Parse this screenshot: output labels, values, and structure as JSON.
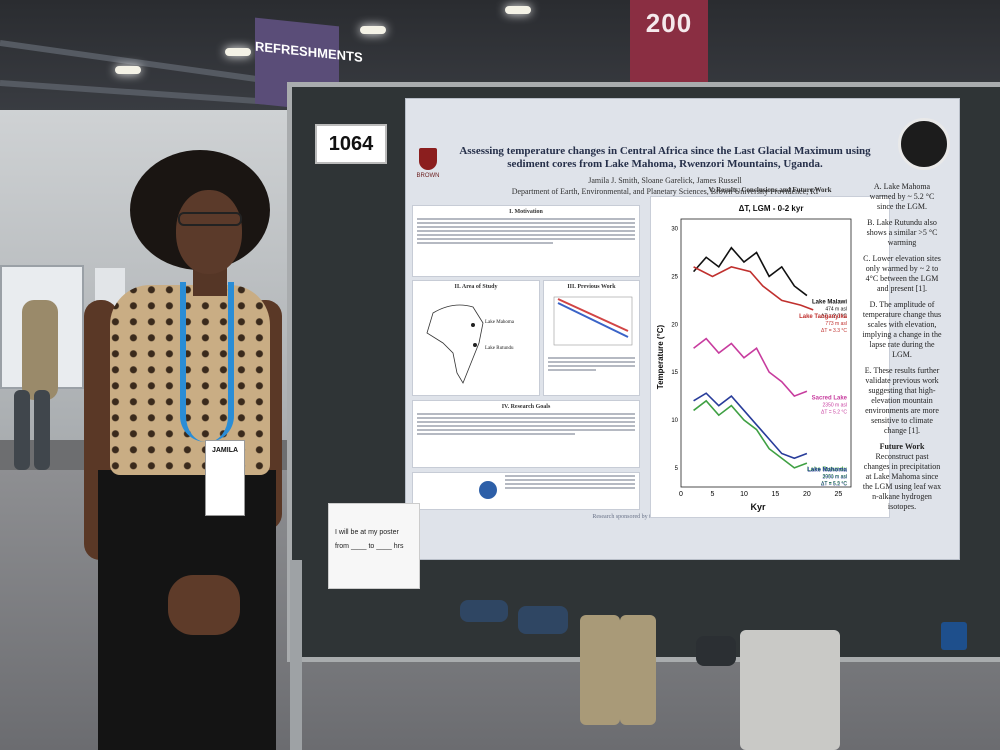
{
  "signs": {
    "refreshments": "REFRESHMENTS",
    "year_banner": "200"
  },
  "board": {
    "number": "1064",
    "note": {
      "line1": "I will be at my poster",
      "from": "from",
      "to": "to",
      "hrs": "hrs"
    }
  },
  "poster": {
    "title": "Assessing temperature changes in Central Africa since the Last Glacial Maximum using sediment cores from Lake Mahoma, Rwenzori Mountains, Uganda.",
    "authors": "Jamila J. Smith, Sloane Garelick, James Russell",
    "department": "Department of Earth, Environmental, and Planetary Sciences, Brown University Providence, RI",
    "logo_text": "BROWN",
    "sections": {
      "motivation": "I. Motivation",
      "area": "II. Area of Study",
      "previous": "III. Previous Work",
      "goals": "IV. Research Goals",
      "results": "V. Results, Conclusions and Future Work"
    },
    "map_labels": {
      "lake_mahoma": "Lake Mahoma",
      "lake_rutundu": "Lake Rutundu"
    },
    "sponsor": "Research sponsored by the National Science Foundation",
    "conclusions": [
      "A. Lake Mahoma warmed by ~ 5.2 °C since the LGM.",
      "B. Lake Rutundu also shows a similar >5 °C warming",
      "C. Lower elevation sites only warmed by ~ 2 to 4°C between the LGM and present [1].",
      "D. The amplitude of temperature change thus scales with elevation, implying a change in the lapse rate during the LGM.",
      "E. These results further validate previous work suggesting that high-elevation mountain environments are more sensitive to climate change [1]."
    ],
    "future_work_title": "Future Work",
    "future_work": "Reconstruct past changes in precipitation at Lake Mahoma since the LGM using leaf wax n-alkane hydrogen isotopes."
  },
  "graph": {
    "title": "ΔT, LGM - 0-2 kyr",
    "ylabel": "Temperature (°C)",
    "xlabel": "Kyr",
    "yticks": [
      "30",
      "25",
      "20",
      "15",
      "10",
      "5"
    ],
    "xticks": [
      "0",
      "5",
      "10",
      "15",
      "20",
      "25"
    ],
    "series": [
      {
        "name": "Lake Malawi",
        "elev": "474 m asl",
        "dt": "ΔT = 2.0 °C",
        "color": "#111111",
        "points": [
          [
            2,
            25.5
          ],
          [
            4,
            27
          ],
          [
            6,
            26
          ],
          [
            8,
            28
          ],
          [
            10,
            26.5
          ],
          [
            12,
            27.5
          ],
          [
            14,
            25
          ],
          [
            16,
            26
          ],
          [
            18,
            24
          ],
          [
            20,
            23
          ]
        ]
      },
      {
        "name": "Lake Tanganyika",
        "elev": "773 m asl",
        "dt": "ΔT = 3.3 °C",
        "color": "#c0302e",
        "points": [
          [
            2,
            26
          ],
          [
            5,
            25
          ],
          [
            8,
            26
          ],
          [
            11,
            25.5
          ],
          [
            13,
            24
          ],
          [
            16,
            22.5
          ],
          [
            19,
            22
          ],
          [
            21,
            21.5
          ]
        ]
      },
      {
        "name": "Sacred Lake",
        "elev": "2350 m asl",
        "dt": "ΔT = 5.2 °C",
        "color": "#c73c9e",
        "points": [
          [
            2,
            17.5
          ],
          [
            4,
            18.5
          ],
          [
            6,
            17
          ],
          [
            8,
            18
          ],
          [
            10,
            16.5
          ],
          [
            12,
            17.5
          ],
          [
            14,
            15
          ],
          [
            16,
            14
          ],
          [
            18,
            12.5
          ],
          [
            20,
            13
          ]
        ]
      },
      {
        "name": "Lake Rutundu",
        "elev": "3081 m asl",
        "dt": "ΔT = 5.5 °C",
        "color": "#3fa043",
        "points": [
          [
            2,
            11
          ],
          [
            4,
            12
          ],
          [
            6,
            10.5
          ],
          [
            8,
            11.5
          ],
          [
            10,
            10
          ],
          [
            12,
            9
          ],
          [
            14,
            7
          ],
          [
            16,
            6
          ],
          [
            18,
            5
          ],
          [
            20,
            5.5
          ]
        ]
      },
      {
        "name": "Lake Mahoma",
        "elev": "2990 m asl",
        "dt": "ΔT = 5.2 °C",
        "color": "#283c9a",
        "points": [
          [
            2,
            12
          ],
          [
            4,
            12.8
          ],
          [
            6,
            11.5
          ],
          [
            8,
            12.5
          ],
          [
            10,
            11
          ],
          [
            12,
            9.5
          ],
          [
            14,
            8
          ],
          [
            16,
            6.5
          ],
          [
            18,
            6
          ],
          [
            20,
            6.5
          ]
        ]
      }
    ],
    "xlim": [
      0,
      27
    ],
    "ylim": [
      3,
      31
    ]
  },
  "badge": {
    "name": "JAMILA"
  }
}
